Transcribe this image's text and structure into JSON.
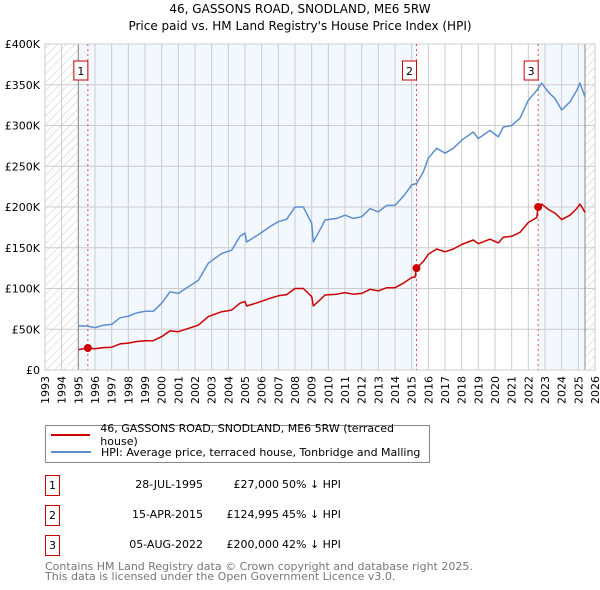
{
  "chart_data": {
    "type": "line",
    "title": "46, GASSONS ROAD, SNODLAND, ME6 5RW",
    "subtitle": "Price paid vs. HM Land Registry's House Price Index (HPI)",
    "xlim": [
      1993,
      2026
    ],
    "ylim": [
      0,
      400000
    ],
    "x_ticks": [
      "1993",
      "1994",
      "1995",
      "1996",
      "1997",
      "1998",
      "1999",
      "2000",
      "2001",
      "2002",
      "2003",
      "2004",
      "2005",
      "2006",
      "2007",
      "2008",
      "2009",
      "2010",
      "2011",
      "2012",
      "2013",
      "2014",
      "2015",
      "2016",
      "2017",
      "2018",
      "2019",
      "2020",
      "2021",
      "2022",
      "2023",
      "2024",
      "2025",
      "2026"
    ],
    "y_ticks": [
      {
        "v": 0,
        "label": "£0"
      },
      {
        "v": 50000,
        "label": "£50K"
      },
      {
        "v": 100000,
        "label": "£100K"
      },
      {
        "v": 150000,
        "label": "£150K"
      },
      {
        "v": 200000,
        "label": "£200K"
      },
      {
        "v": 250000,
        "label": "£250K"
      },
      {
        "v": 300000,
        "label": "£300K"
      },
      {
        "v": 350000,
        "label": "£350K"
      },
      {
        "v": 400000,
        "label": "£400K"
      }
    ],
    "grid": true,
    "hatch_before": 1995,
    "hatch_after": 2025.4,
    "colors": {
      "property": "#cc0000",
      "hpi": "#5b8fd0",
      "band": "#f3f7fe"
    },
    "series": [
      {
        "name": "46, GASSONS ROAD, SNODLAND, ME6 5RW (terraced house)",
        "unit": "£K",
        "points": [
          [
            1995,
            25
          ],
          [
            1995.57,
            27
          ],
          [
            1996,
            26
          ],
          [
            1996.5,
            27.5
          ],
          [
            1997,
            28
          ],
          [
            1997.5,
            32
          ],
          [
            1998,
            33
          ],
          [
            1998.5,
            35
          ],
          [
            1999,
            36
          ],
          [
            1999.5,
            36
          ],
          [
            2000,
            41
          ],
          [
            2000.5,
            48
          ],
          [
            2001,
            47
          ],
          [
            2001.6,
            51
          ],
          [
            2002.2,
            55
          ],
          [
            2002.8,
            65.5
          ],
          [
            2003.6,
            71.5
          ],
          [
            2004.2,
            73.5
          ],
          [
            2004.7,
            82
          ],
          [
            2005,
            84
          ],
          [
            2005.1,
            78.5
          ],
          [
            2005.8,
            83
          ],
          [
            2006.5,
            88
          ],
          [
            2007,
            91
          ],
          [
            2007.5,
            92.5
          ],
          [
            2008,
            100
          ],
          [
            2008.5,
            100
          ],
          [
            2009,
            90
          ],
          [
            2009.1,
            78.5
          ],
          [
            2009.5,
            86
          ],
          [
            2009.8,
            92
          ],
          [
            2010.5,
            93
          ],
          [
            2011,
            95
          ],
          [
            2011.5,
            93
          ],
          [
            2012,
            94
          ],
          [
            2012.5,
            99
          ],
          [
            2013,
            97
          ],
          [
            2013.5,
            101
          ],
          [
            2014,
            101
          ],
          [
            2014.5,
            106.5
          ],
          [
            2015,
            113.5
          ],
          [
            2015.2,
            114
          ],
          [
            2015.29,
            124.995
          ],
          [
            2015.7,
            133
          ],
          [
            2016,
            142
          ],
          [
            2016.5,
            148.5
          ],
          [
            2017,
            145
          ],
          [
            2017.5,
            148.5
          ],
          [
            2018,
            154
          ],
          [
            2018.7,
            159.5
          ],
          [
            2019,
            155
          ],
          [
            2019.7,
            160.5
          ],
          [
            2020.2,
            156
          ],
          [
            2020.5,
            163
          ],
          [
            2021,
            164
          ],
          [
            2021.5,
            169
          ],
          [
            2022,
            181
          ],
          [
            2022.5,
            187
          ],
          [
            2022.59,
            200
          ],
          [
            2022.8,
            203.5
          ],
          [
            2023.2,
            197
          ],
          [
            2023.6,
            192.5
          ],
          [
            2024,
            184.5
          ],
          [
            2024.5,
            190
          ],
          [
            2024.9,
            198
          ],
          [
            2025.1,
            203.5
          ],
          [
            2025.4,
            193.5
          ]
        ]
      },
      {
        "name": "HPI: Average price, terraced house, Tonbridge and Malling",
        "unit": "£K",
        "points": [
          [
            1995,
            54
          ],
          [
            1995.5,
            54
          ],
          [
            1996,
            52
          ],
          [
            1996.5,
            55
          ],
          [
            1997,
            56
          ],
          [
            1997.5,
            64
          ],
          [
            1998,
            66
          ],
          [
            1998.5,
            70
          ],
          [
            1999,
            72
          ],
          [
            1999.5,
            72
          ],
          [
            2000,
            82
          ],
          [
            2000.5,
            96
          ],
          [
            2001,
            94
          ],
          [
            2001.6,
            102
          ],
          [
            2002.2,
            110
          ],
          [
            2002.8,
            131
          ],
          [
            2003.6,
            143
          ],
          [
            2004.2,
            147
          ],
          [
            2004.7,
            164
          ],
          [
            2005,
            168
          ],
          [
            2005.1,
            157
          ],
          [
            2005.8,
            166
          ],
          [
            2006.5,
            176
          ],
          [
            2007,
            182
          ],
          [
            2007.5,
            185
          ],
          [
            2008,
            200
          ],
          [
            2008.5,
            200
          ],
          [
            2009,
            180
          ],
          [
            2009.1,
            157
          ],
          [
            2009.5,
            172
          ],
          [
            2009.8,
            184
          ],
          [
            2010.5,
            186
          ],
          [
            2011,
            190
          ],
          [
            2011.5,
            186
          ],
          [
            2012,
            188
          ],
          [
            2012.5,
            198
          ],
          [
            2013,
            194
          ],
          [
            2013.5,
            202
          ],
          [
            2014,
            202
          ],
          [
            2014.5,
            213
          ],
          [
            2015,
            227
          ],
          [
            2015.3,
            229
          ],
          [
            2015.7,
            243
          ],
          [
            2016,
            260
          ],
          [
            2016.5,
            272
          ],
          [
            2017,
            266
          ],
          [
            2017.5,
            272
          ],
          [
            2018,
            282
          ],
          [
            2018.7,
            292
          ],
          [
            2019,
            284
          ],
          [
            2019.7,
            294
          ],
          [
            2020.2,
            286
          ],
          [
            2020.5,
            298
          ],
          [
            2021,
            300
          ],
          [
            2021.5,
            309
          ],
          [
            2022,
            331
          ],
          [
            2022.5,
            343
          ],
          [
            2022.8,
            352
          ],
          [
            2023.2,
            341
          ],
          [
            2023.6,
            333
          ],
          [
            2024,
            319
          ],
          [
            2024.5,
            329
          ],
          [
            2024.9,
            343
          ],
          [
            2025.1,
            352
          ],
          [
            2025.4,
            335
          ]
        ]
      }
    ],
    "sales": [
      {
        "n": "1",
        "x": 1995.57,
        "y": 27000
      },
      {
        "n": "2",
        "x": 2015.29,
        "y": 124995
      },
      {
        "n": "3",
        "x": 2022.59,
        "y": 200000
      }
    ]
  },
  "legend": {
    "property": "46, GASSONS ROAD, SNODLAND, ME6 5RW (terraced house)",
    "hpi": "HPI: Average price, terraced house, Tonbridge and Malling"
  },
  "transactions": [
    {
      "n": "1",
      "date": "28-JUL-1995",
      "price": "£27,000",
      "hpi": "50% ↓ HPI"
    },
    {
      "n": "2",
      "date": "15-APR-2015",
      "price": "£124,995",
      "hpi": "45% ↓ HPI"
    },
    {
      "n": "3",
      "date": "05-AUG-2022",
      "price": "£200,000",
      "hpi": "42% ↓ HPI"
    }
  ],
  "footer": {
    "line1": "Contains HM Land Registry data © Crown copyright and database right 2025.",
    "line2": "This data is licensed under the Open Government Licence v3.0."
  }
}
